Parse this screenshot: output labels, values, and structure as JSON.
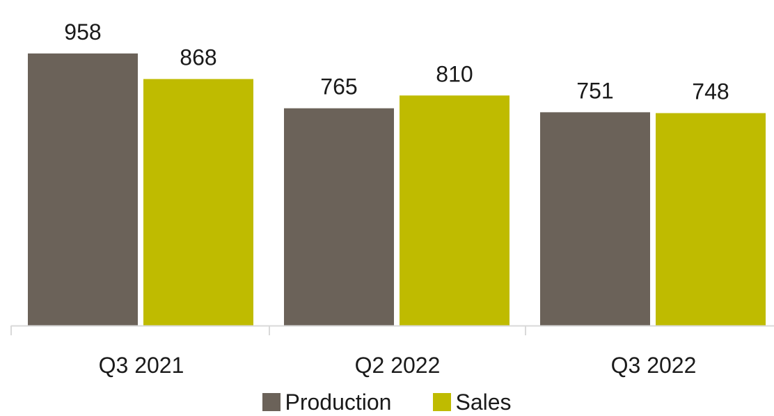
{
  "colors": {
    "production": "#6b6259",
    "sales": "#bfbb00",
    "axis": "#d9d9d9"
  },
  "chart_data": {
    "type": "bar",
    "categories": [
      "Q3 2021",
      "Q2 2022",
      "Q3 2022"
    ],
    "series": [
      {
        "name": "Production",
        "values": [
          958,
          765,
          751
        ],
        "color": "#6b6259"
      },
      {
        "name": "Sales",
        "values": [
          868,
          810,
          748
        ],
        "color": "#bfbb00"
      }
    ],
    "title": "",
    "xlabel": "",
    "ylabel": "",
    "ylim": [
      0,
      1000
    ],
    "grid": false,
    "legend_position": "bottom",
    "data_labels": true
  }
}
